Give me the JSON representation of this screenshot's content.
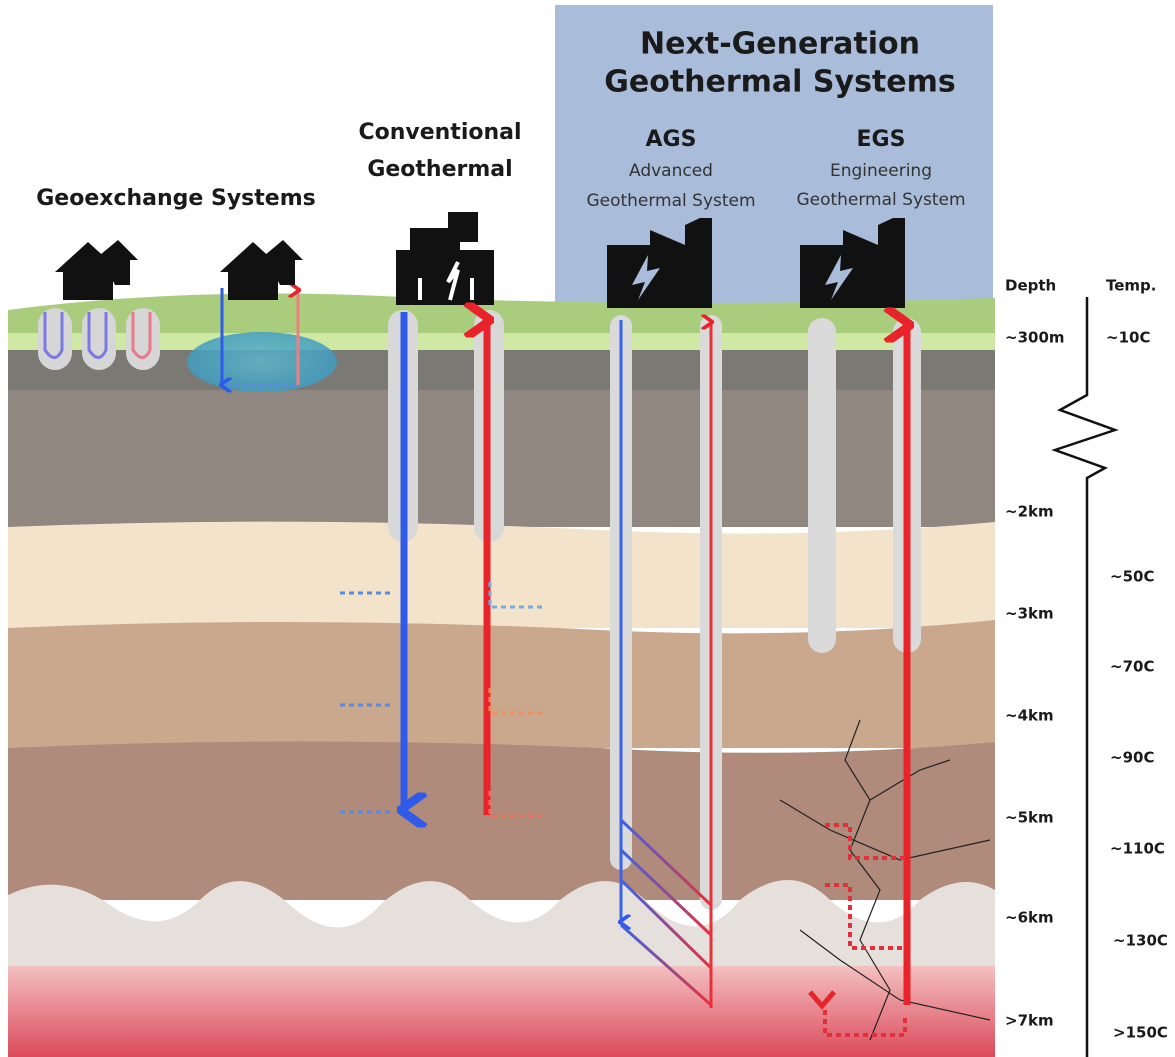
{
  "geoexchange": {
    "title": "Geoexchange Systems"
  },
  "conventional": {
    "title": [
      "Conventional",
      "Geothermal"
    ]
  },
  "next_generation": {
    "title": [
      "Next-Generation",
      "Geothermal Systems"
    ],
    "ags": {
      "name": "AGS",
      "full_name": [
        "Advanced",
        "Geothermal System"
      ]
    },
    "egs": {
      "name": "EGS",
      "full_name": [
        "Engineering",
        "Geothermal System"
      ]
    }
  },
  "scale": {
    "depth_header": "Depth",
    "temp_header": "Temp.",
    "depths": [
      "~300m",
      "~2km",
      "~3km",
      "~4km",
      "~5km",
      "~6km",
      ">7km"
    ],
    "temps": [
      "~10C",
      "~50C",
      "~70C",
      "~90C",
      "~110C",
      "~130C",
      ">150C"
    ]
  }
}
